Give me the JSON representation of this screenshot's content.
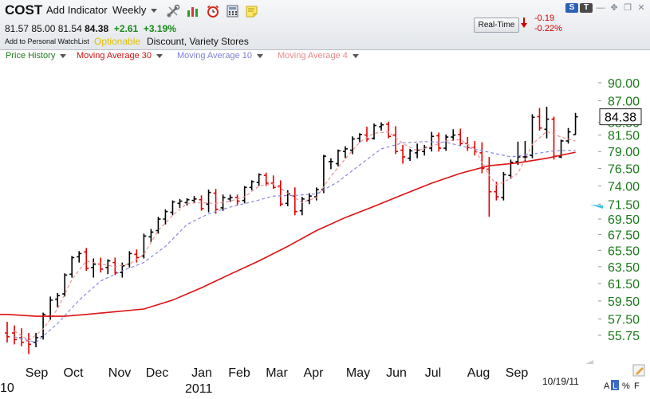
{
  "header": {
    "symbol": "COST",
    "add_indicator": "Add Indicator",
    "period": "Weekly",
    "toolbar_icons": [
      "wrench-scissors-icon",
      "bar-chart-icon",
      "alarm-clock-icon",
      "calculator-icon",
      "sticky-note-icon"
    ],
    "quote": {
      "open": "81.57",
      "high": "85.00",
      "low": "81.54",
      "close": "84.38",
      "change": "+2.61",
      "change_pct": "+3.19%"
    },
    "watchlist_link": "Add to Personal WatchList",
    "optionable": "Optionable",
    "industry": "Discount, Variety Stores",
    "realtime_button": "Real-Time",
    "rt_change": "-0.19",
    "rt_change_pct": "-0.22%",
    "badges": [
      "S",
      "T"
    ]
  },
  "legend": {
    "price_history": "Price History",
    "ma30": "Moving Average 30",
    "ma10": "Moving Average 10",
    "ma4": "Moving Average 4"
  },
  "colors": {
    "up_bar": "#000000",
    "down_bar": "#e00000",
    "ma30": "#dd1111",
    "ma10": "#8a8ae0",
    "ma4": "#f09090",
    "price_axis": "#1a7a1a",
    "price_history": "#1a7a1a"
  },
  "chart_data": {
    "type": "ohlc",
    "price_ticks": [
      "90.00",
      "87.00",
      "83.50",
      "81.50",
      "79.00",
      "76.50",
      "74.00",
      "71.50",
      "69.50",
      "67.50",
      "65.50",
      "63.50",
      "61.50",
      "59.50",
      "57.50",
      "55.75"
    ],
    "last_price": "84.38",
    "x_months": [
      "Sep",
      "Oct",
      "Nov",
      "Dec",
      "Jan",
      "Feb",
      "Mar",
      "Apr",
      "May",
      "Jun",
      "Jul",
      "Aug",
      "Sep"
    ],
    "x_years": [
      "10",
      "2011"
    ],
    "date_label": "10/19/11",
    "bars": [
      {
        "o": 56.0,
        "h": 57.2,
        "l": 55.0,
        "c": 55.6
      },
      {
        "o": 56.0,
        "h": 56.8,
        "l": 54.8,
        "c": 55.3
      },
      {
        "o": 55.5,
        "h": 56.5,
        "l": 54.6,
        "c": 55.0
      },
      {
        "o": 55.2,
        "h": 56.0,
        "l": 53.8,
        "c": 54.8
      },
      {
        "o": 55.0,
        "h": 56.0,
        "l": 54.5,
        "c": 55.5
      },
      {
        "o": 55.6,
        "h": 58.2,
        "l": 55.3,
        "c": 58.0
      },
      {
        "o": 57.8,
        "h": 60.0,
        "l": 57.4,
        "c": 59.6
      },
      {
        "o": 59.7,
        "h": 60.4,
        "l": 58.8,
        "c": 60.1
      },
      {
        "o": 60.3,
        "h": 62.7,
        "l": 60.0,
        "c": 62.5
      },
      {
        "o": 62.6,
        "h": 64.8,
        "l": 62.2,
        "c": 64.6
      },
      {
        "o": 64.7,
        "h": 65.4,
        "l": 64.0,
        "c": 65.1
      },
      {
        "o": 65.3,
        "h": 65.8,
        "l": 63.0,
        "c": 63.3
      },
      {
        "o": 63.4,
        "h": 64.5,
        "l": 62.2,
        "c": 63.8
      },
      {
        "o": 63.8,
        "h": 64.6,
        "l": 62.8,
        "c": 63.2
      },
      {
        "o": 63.4,
        "h": 64.4,
        "l": 62.6,
        "c": 64.2
      },
      {
        "o": 64.0,
        "h": 64.6,
        "l": 62.5,
        "c": 62.8
      },
      {
        "o": 62.8,
        "h": 64.0,
        "l": 62.2,
        "c": 63.6
      },
      {
        "o": 63.8,
        "h": 65.4,
        "l": 63.4,
        "c": 65.1
      },
      {
        "o": 65.0,
        "h": 65.6,
        "l": 64.0,
        "c": 64.6
      },
      {
        "o": 64.8,
        "h": 67.6,
        "l": 64.5,
        "c": 67.3
      },
      {
        "o": 67.2,
        "h": 68.2,
        "l": 66.5,
        "c": 67.8
      },
      {
        "o": 68.0,
        "h": 69.8,
        "l": 67.6,
        "c": 69.5
      },
      {
        "o": 69.5,
        "h": 70.8,
        "l": 68.8,
        "c": 70.5
      },
      {
        "o": 70.4,
        "h": 72.0,
        "l": 70.0,
        "c": 71.8
      },
      {
        "o": 71.6,
        "h": 72.2,
        "l": 71.0,
        "c": 71.9
      },
      {
        "o": 71.7,
        "h": 72.3,
        "l": 71.3,
        "c": 72.1
      },
      {
        "o": 72.0,
        "h": 72.6,
        "l": 71.6,
        "c": 72.2
      },
      {
        "o": 72.1,
        "h": 72.7,
        "l": 70.6,
        "c": 70.9
      },
      {
        "o": 71.5,
        "h": 73.5,
        "l": 70.4,
        "c": 73.1
      },
      {
        "o": 73.0,
        "h": 73.6,
        "l": 70.2,
        "c": 70.8
      },
      {
        "o": 71.0,
        "h": 72.8,
        "l": 70.6,
        "c": 72.4
      },
      {
        "o": 72.2,
        "h": 72.8,
        "l": 71.8,
        "c": 72.4
      },
      {
        "o": 72.4,
        "h": 72.8,
        "l": 71.4,
        "c": 71.9
      },
      {
        "o": 72.0,
        "h": 74.0,
        "l": 71.6,
        "c": 73.8
      },
      {
        "o": 73.8,
        "h": 74.8,
        "l": 73.4,
        "c": 74.6
      },
      {
        "o": 74.5,
        "h": 75.8,
        "l": 74.0,
        "c": 75.6
      },
      {
        "o": 75.5,
        "h": 75.9,
        "l": 74.0,
        "c": 74.4
      },
      {
        "o": 74.4,
        "h": 75.5,
        "l": 73.6,
        "c": 73.8
      },
      {
        "o": 74.0,
        "h": 74.8,
        "l": 71.2,
        "c": 71.5
      },
      {
        "o": 71.6,
        "h": 73.4,
        "l": 71.2,
        "c": 72.9
      },
      {
        "o": 72.6,
        "h": 73.8,
        "l": 70.0,
        "c": 70.5
      },
      {
        "o": 70.6,
        "h": 72.5,
        "l": 70.0,
        "c": 72.2
      },
      {
        "o": 72.0,
        "h": 73.0,
        "l": 71.5,
        "c": 72.6
      },
      {
        "o": 72.5,
        "h": 73.8,
        "l": 72.0,
        "c": 73.5
      },
      {
        "o": 73.5,
        "h": 78.5,
        "l": 73.0,
        "c": 78.3
      },
      {
        "o": 77.5,
        "h": 78.0,
        "l": 76.4,
        "c": 77.5
      },
      {
        "o": 77.2,
        "h": 79.3,
        "l": 76.8,
        "c": 79.1
      },
      {
        "o": 79.0,
        "h": 79.8,
        "l": 78.0,
        "c": 79.4
      },
      {
        "o": 79.2,
        "h": 81.3,
        "l": 78.6,
        "c": 80.9
      },
      {
        "o": 81.0,
        "h": 81.8,
        "l": 80.4,
        "c": 81.6
      },
      {
        "o": 81.5,
        "h": 82.8,
        "l": 80.5,
        "c": 80.9
      },
      {
        "o": 81.0,
        "h": 83.3,
        "l": 80.8,
        "c": 83.0
      },
      {
        "o": 82.8,
        "h": 83.5,
        "l": 82.2,
        "c": 83.1
      },
      {
        "o": 83.2,
        "h": 83.6,
        "l": 81.0,
        "c": 81.3
      },
      {
        "o": 81.5,
        "h": 82.9,
        "l": 78.6,
        "c": 79.0
      },
      {
        "o": 79.2,
        "h": 80.0,
        "l": 77.2,
        "c": 78.2
      },
      {
        "o": 78.0,
        "h": 79.4,
        "l": 77.6,
        "c": 79.1
      },
      {
        "o": 78.8,
        "h": 80.2,
        "l": 78.0,
        "c": 79.2
      },
      {
        "o": 79.0,
        "h": 80.0,
        "l": 78.4,
        "c": 79.6
      },
      {
        "o": 79.5,
        "h": 82.0,
        "l": 79.0,
        "c": 81.3
      },
      {
        "o": 81.4,
        "h": 81.9,
        "l": 79.0,
        "c": 79.5
      },
      {
        "o": 79.5,
        "h": 81.6,
        "l": 79.1,
        "c": 81.2
      },
      {
        "o": 81.2,
        "h": 82.4,
        "l": 80.6,
        "c": 81.5
      },
      {
        "o": 81.6,
        "h": 82.5,
        "l": 79.8,
        "c": 80.2
      },
      {
        "o": 80.2,
        "h": 81.2,
        "l": 79.1,
        "c": 79.6
      },
      {
        "o": 79.6,
        "h": 80.6,
        "l": 78.4,
        "c": 79.0
      },
      {
        "o": 78.8,
        "h": 80.4,
        "l": 75.8,
        "c": 76.5
      },
      {
        "o": 76.4,
        "h": 78.2,
        "l": 69.8,
        "c": 73.2
      },
      {
        "o": 73.2,
        "h": 74.6,
        "l": 72.0,
        "c": 72.5
      },
      {
        "o": 72.4,
        "h": 76.0,
        "l": 72.0,
        "c": 75.6
      },
      {
        "o": 75.5,
        "h": 77.8,
        "l": 75.0,
        "c": 77.4
      },
      {
        "o": 77.5,
        "h": 80.5,
        "l": 77.0,
        "c": 78.2
      },
      {
        "o": 78.2,
        "h": 80.6,
        "l": 77.6,
        "c": 78.2
      },
      {
        "o": 78.4,
        "h": 84.8,
        "l": 78.0,
        "c": 84.3
      },
      {
        "o": 84.4,
        "h": 85.8,
        "l": 82.2,
        "c": 82.6
      },
      {
        "o": 82.4,
        "h": 86.0,
        "l": 81.0,
        "c": 84.0
      },
      {
        "o": 84.0,
        "h": 84.4,
        "l": 77.8,
        "c": 78.3
      },
      {
        "o": 78.2,
        "h": 80.8,
        "l": 78.0,
        "c": 80.6
      },
      {
        "o": 80.6,
        "h": 82.6,
        "l": 80.2,
        "c": 82.0
      },
      {
        "o": 81.57,
        "h": 85.0,
        "l": 81.54,
        "c": 84.38
      }
    ],
    "ma30": [
      [
        0,
        58.0
      ],
      [
        4,
        57.8
      ],
      [
        8,
        57.8
      ],
      [
        11,
        58.0
      ],
      [
        15,
        58.3
      ],
      [
        19,
        58.6
      ],
      [
        23,
        59.6
      ],
      [
        27,
        61.0
      ],
      [
        31,
        62.6
      ],
      [
        35,
        64.2
      ],
      [
        39,
        66.0
      ],
      [
        43,
        68.0
      ],
      [
        47,
        69.7
      ],
      [
        51,
        71.2
      ],
      [
        55,
        72.8
      ],
      [
        59,
        74.4
      ],
      [
        63,
        75.8
      ],
      [
        67,
        76.9
      ],
      [
        71,
        77.3
      ],
      [
        75,
        78.0
      ],
      [
        79,
        78.9
      ]
    ],
    "ma10": [
      [
        1,
        55.6
      ],
      [
        4,
        55.0
      ],
      [
        7,
        57.0
      ],
      [
        10,
        59.6
      ],
      [
        13,
        61.8
      ],
      [
        16,
        63.0
      ],
      [
        19,
        64.0
      ],
      [
        22,
        66.0
      ],
      [
        25,
        68.8
      ],
      [
        28,
        70.2
      ],
      [
        31,
        71.1
      ],
      [
        34,
        71.8
      ],
      [
        37,
        72.6
      ],
      [
        40,
        72.7
      ],
      [
        43,
        72.9
      ],
      [
        46,
        74.6
      ],
      [
        49,
        77.0
      ],
      [
        52,
        79.4
      ],
      [
        55,
        80.3
      ],
      [
        58,
        80.5
      ],
      [
        61,
        80.4
      ],
      [
        64,
        79.6
      ],
      [
        67,
        78.9
      ],
      [
        70,
        78.2
      ],
      [
        73,
        78.6
      ],
      [
        76,
        79.1
      ],
      [
        79,
        79.2
      ]
    ],
    "ma4": [
      [
        1,
        56.2
      ],
      [
        3,
        55.2
      ],
      [
        5,
        56.4
      ],
      [
        7,
        58.6
      ],
      [
        9,
        62.0
      ],
      [
        11,
        64.2
      ],
      [
        13,
        63.8
      ],
      [
        15,
        63.5
      ],
      [
        17,
        63.8
      ],
      [
        19,
        65.0
      ],
      [
        21,
        68.0
      ],
      [
        23,
        70.0
      ],
      [
        25,
        71.6
      ],
      [
        27,
        71.7
      ],
      [
        29,
        71.6
      ],
      [
        31,
        71.9
      ],
      [
        33,
        72.5
      ],
      [
        35,
        74.0
      ],
      [
        37,
        74.3
      ],
      [
        39,
        73.0
      ],
      [
        41,
        71.7
      ],
      [
        43,
        72.4
      ],
      [
        45,
        75.4
      ],
      [
        47,
        77.9
      ],
      [
        49,
        80.4
      ],
      [
        51,
        81.8
      ],
      [
        53,
        82.0
      ],
      [
        55,
        80.2
      ],
      [
        57,
        79.1
      ],
      [
        59,
        79.8
      ],
      [
        61,
        80.6
      ],
      [
        63,
        80.8
      ],
      [
        65,
        79.4
      ],
      [
        67,
        75.5
      ],
      [
        68,
        74.2
      ],
      [
        69,
        74.5
      ],
      [
        71,
        75.8
      ],
      [
        73,
        80.1
      ],
      [
        75,
        82.1
      ],
      [
        77,
        81.2
      ],
      [
        79,
        80.6
      ]
    ]
  }
}
